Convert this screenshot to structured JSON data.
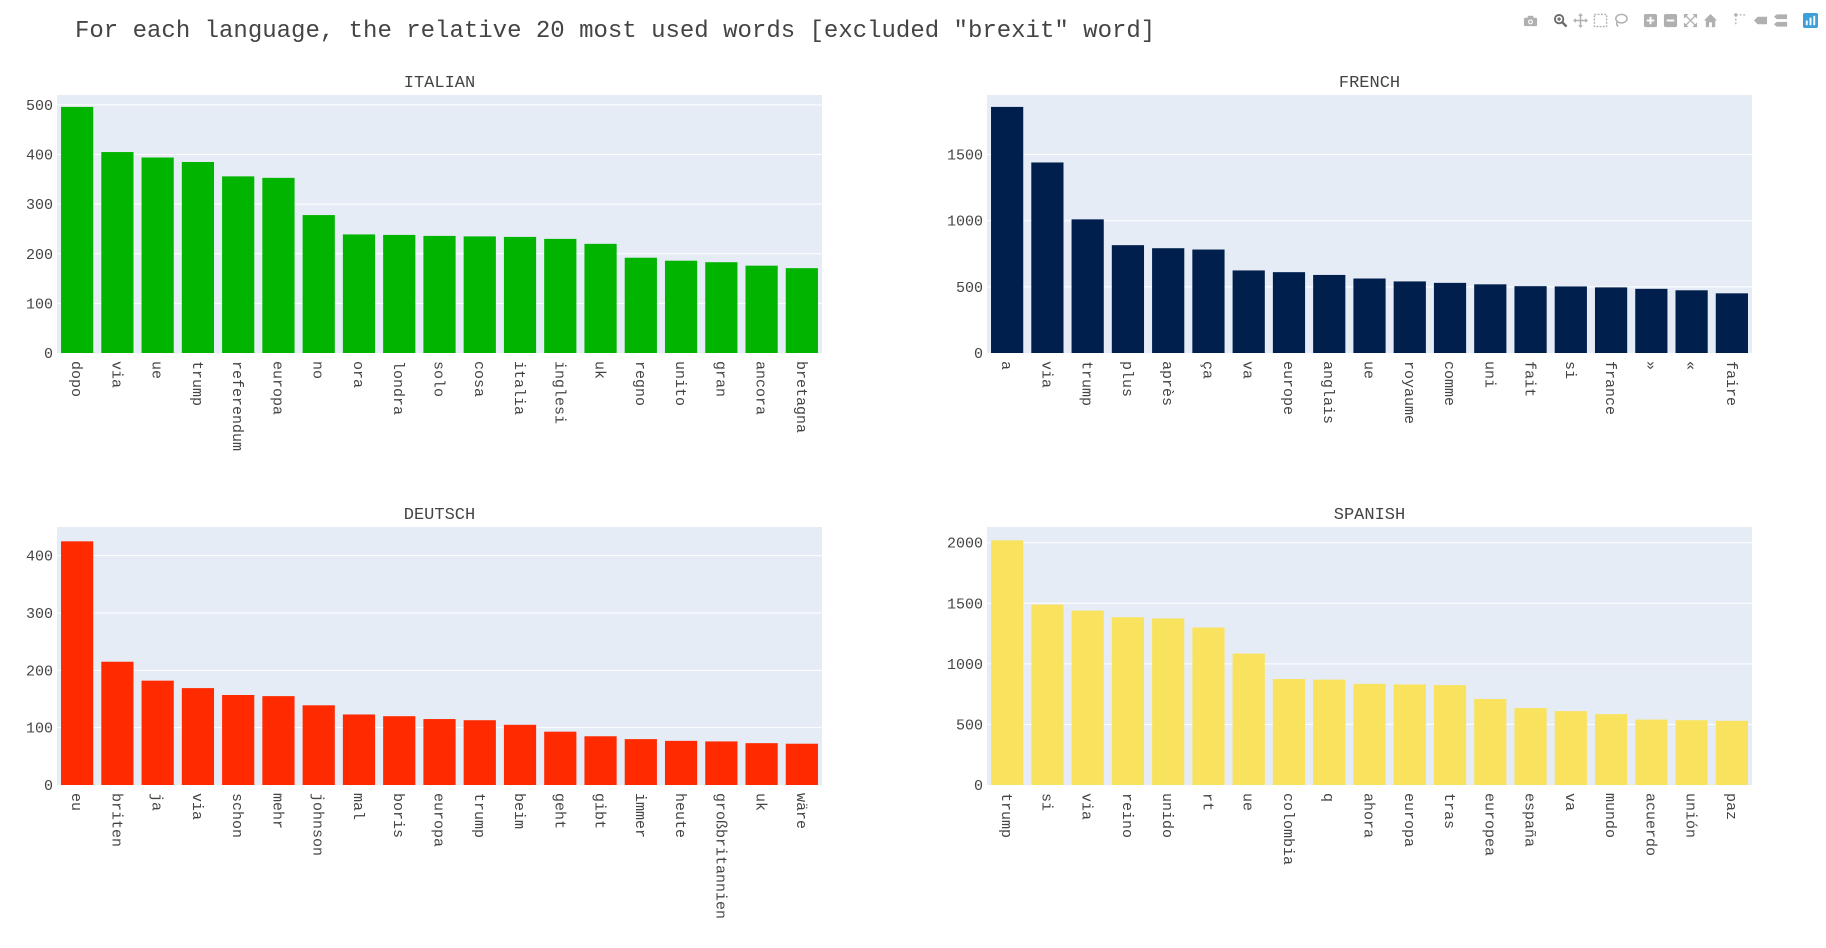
{
  "title": "For each language, the relative 20 most used words [excluded \"brexit\" word]",
  "modebar": {
    "groups": [
      [
        "camera-icon"
      ],
      [
        "zoom-icon",
        "pan-icon",
        "box-select-icon",
        "lasso-select-icon"
      ],
      [
        "zoom-in-icon",
        "zoom-out-icon",
        "autoscale-icon",
        "reset-axes-icon"
      ],
      [
        "spike-lines-icon",
        "hover-closest-icon",
        "hover-compare-icon"
      ],
      [
        "plotly-logo-icon"
      ]
    ],
    "icon_color": "#b0b0b0",
    "active_color": "#6a6a6a",
    "logo_color": "#3f9fd8"
  },
  "chart_data": [
    {
      "type": "bar",
      "title": "ITALIAN",
      "color": "#00b400",
      "categories": [
        "dopo",
        "via",
        "ue",
        "trump",
        "referendum",
        "europa",
        "no",
        "ora",
        "londra",
        "solo",
        "cosa",
        "italia",
        "inglesi",
        "uk",
        "regno",
        "unito",
        "gran",
        "ancora",
        "bretagna"
      ],
      "values": [
        496,
        405,
        394,
        385,
        356,
        353,
        278,
        239,
        238,
        236,
        235,
        234,
        230,
        220,
        192,
        186,
        183,
        176,
        171
      ],
      "ylim": [
        0,
        520
      ],
      "yticks": [
        0,
        100,
        200,
        300,
        400,
        500
      ],
      "grid": true
    },
    {
      "type": "bar",
      "title": "FRENCH",
      "color": "#001f4d",
      "categories": [
        "a",
        "via",
        "trump",
        "plus",
        "après",
        "ça",
        "va",
        "europe",
        "anglais",
        "ue",
        "royaume",
        "comme",
        "uni",
        "fait",
        "si",
        "france",
        "»",
        "«",
        "faire"
      ],
      "values": [
        1860,
        1440,
        1010,
        815,
        792,
        782,
        624,
        611,
        590,
        563,
        541,
        530,
        519,
        505,
        503,
        496,
        485,
        474,
        451
      ],
      "ylim": [
        0,
        1950
      ],
      "yticks": [
        0,
        500,
        1000,
        1500
      ],
      "grid": true
    },
    {
      "type": "bar",
      "title": "DEUTSCH",
      "color": "#ff2a00",
      "categories": [
        "eu",
        "briten",
        "ja",
        "via",
        "schon",
        "mehr",
        "johnson",
        "mal",
        "boris",
        "europa",
        "trump",
        "beim",
        "geht",
        "gibt",
        "immer",
        "heute",
        "großbritannien",
        "uk",
        "wäre"
      ],
      "values": [
        425,
        215,
        182,
        169,
        157,
        155,
        139,
        123,
        120,
        115,
        113,
        105,
        93,
        85,
        80,
        77,
        76,
        73,
        72
      ],
      "ylim": [
        0,
        450
      ],
      "yticks": [
        0,
        100,
        200,
        300,
        400
      ],
      "grid": true
    },
    {
      "type": "bar",
      "title": "SPANISH",
      "color": "#f9e35e",
      "categories": [
        "trump",
        "si",
        "via",
        "reino",
        "unido",
        "rt",
        "ue",
        "colombia",
        "q",
        "ahora",
        "europa",
        "tras",
        "europea",
        "españa",
        "va",
        "mundo",
        "acuerdo",
        "unión",
        "paz"
      ],
      "values": [
        2020,
        1490,
        1440,
        1385,
        1375,
        1300,
        1085,
        875,
        870,
        835,
        830,
        825,
        710,
        635,
        610,
        585,
        540,
        535,
        530
      ],
      "ylim": [
        0,
        2130
      ],
      "yticks": [
        0,
        500,
        1000,
        1500,
        2000
      ],
      "grid": true
    }
  ]
}
